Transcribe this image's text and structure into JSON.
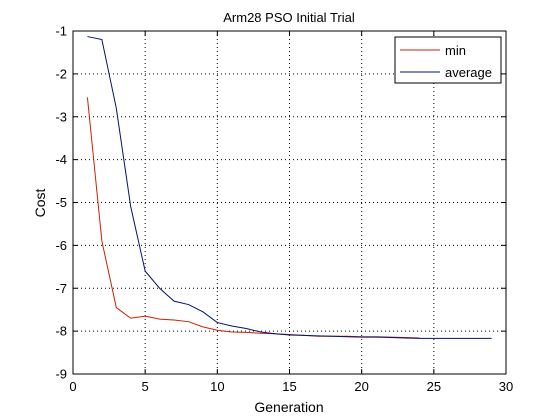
{
  "chart_data": {
    "type": "line",
    "title": "Arm28 PSO Initial Trial",
    "xlabel": "Generation",
    "ylabel": "Cost",
    "xlim": [
      0,
      30
    ],
    "ylim": [
      -9,
      -1
    ],
    "xticks": [
      0,
      5,
      10,
      15,
      20,
      25,
      30
    ],
    "yticks": [
      -9,
      -8,
      -7,
      -6,
      -5,
      -4,
      -3,
      -2,
      -1
    ],
    "grid": true,
    "legend_position": "top-right",
    "series": [
      {
        "name": "min",
        "color": "#cc2200",
        "x": [
          1,
          2,
          3,
          4,
          5,
          6,
          7,
          8,
          9,
          10,
          11,
          12,
          13,
          14,
          15,
          16,
          17,
          18,
          19,
          20,
          21,
          22,
          23,
          24
        ],
        "y": [
          -2.55,
          -5.9,
          -7.45,
          -7.7,
          -7.65,
          -7.72,
          -7.74,
          -7.78,
          -7.9,
          -7.98,
          -8.02,
          -8.03,
          -8.05,
          -8.06,
          -8.08,
          -8.1,
          -8.12,
          -8.12,
          -8.12,
          -8.13,
          -8.13,
          -8.14,
          -8.15,
          -8.16
        ]
      },
      {
        "name": "average",
        "color": "#00146e",
        "x": [
          1,
          2,
          3,
          4,
          5,
          6,
          7,
          8,
          9,
          10,
          11,
          12,
          13,
          14,
          15,
          16,
          17,
          18,
          19,
          20,
          21,
          22,
          23,
          24,
          25,
          26,
          27,
          28,
          29
        ],
        "y": [
          -1.13,
          -1.2,
          -2.8,
          -5.1,
          -6.6,
          -7.0,
          -7.3,
          -7.38,
          -7.55,
          -7.8,
          -7.88,
          -7.94,
          -8.02,
          -8.06,
          -8.09,
          -8.1,
          -8.11,
          -8.12,
          -8.13,
          -8.14,
          -8.14,
          -8.15,
          -8.16,
          -8.17,
          -8.17,
          -8.17,
          -8.17,
          -8.17,
          -8.17
        ]
      }
    ]
  }
}
